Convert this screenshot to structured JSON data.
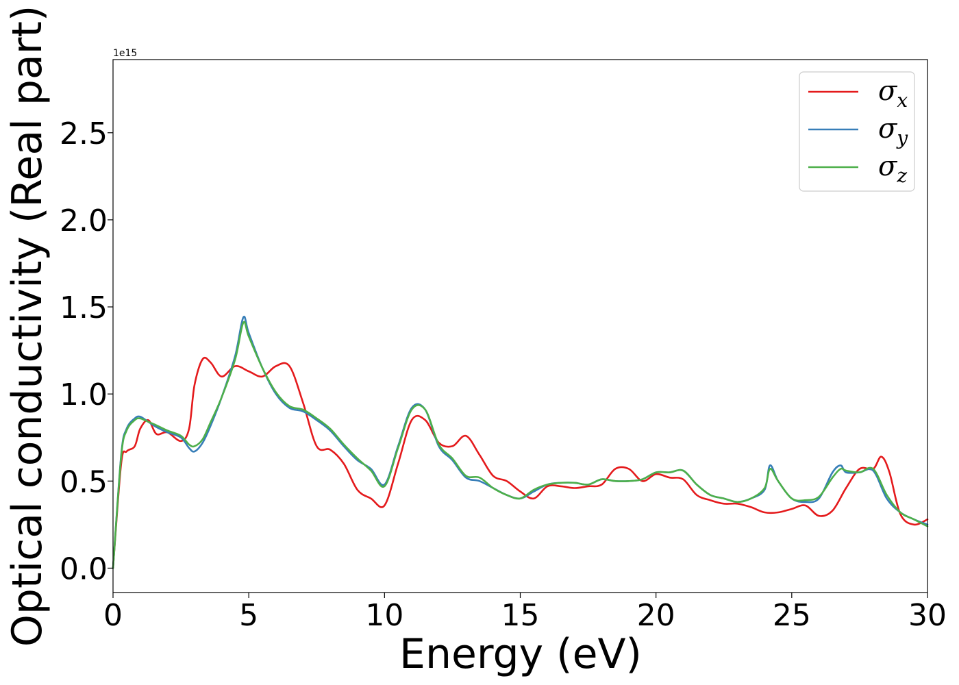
{
  "chart_data": {
    "type": "line",
    "title": "",
    "xlabel": "Energy (eV)",
    "ylabel": "Optical conductivity (Real part)",
    "y_offset_label": "1e15",
    "xlim": [
      0,
      30
    ],
    "ylim": [
      -0.14,
      2.92
    ],
    "x_ticks": [
      0,
      5,
      10,
      15,
      20,
      25,
      30
    ],
    "x_tick_labels": [
      "0",
      "5",
      "10",
      "15",
      "20",
      "25",
      "30"
    ],
    "y_ticks": [
      0.0,
      0.5,
      1.0,
      1.5,
      2.0,
      2.5
    ],
    "y_tick_labels": [
      "0.0",
      "0.5",
      "1.0",
      "1.5",
      "2.0",
      "2.5"
    ],
    "grid": false,
    "legend_position": "top-right",
    "series": [
      {
        "name": "σx",
        "symbol": "σ",
        "subscript": "x",
        "color": "#e41a1c",
        "x": [
          0,
          0.3,
          0.5,
          0.8,
          1.0,
          1.3,
          1.6,
          2.0,
          2.5,
          2.8,
          3.0,
          3.3,
          3.6,
          4.0,
          4.5,
          5.0,
          5.5,
          6.0,
          6.5,
          7.0,
          7.5,
          8.0,
          8.5,
          9.0,
          9.5,
          10.0,
          10.5,
          11.0,
          11.5,
          12.0,
          12.5,
          13.0,
          13.5,
          14.0,
          14.5,
          15.0,
          15.5,
          16.0,
          16.5,
          17.0,
          17.5,
          18.0,
          18.5,
          19.0,
          19.5,
          20.0,
          20.5,
          21.0,
          21.5,
          22.0,
          22.5,
          23.0,
          23.5,
          24.0,
          24.5,
          25.0,
          25.5,
          26.0,
          26.5,
          27.0,
          27.5,
          28.0,
          28.3,
          28.6,
          29.0,
          29.5,
          30.0
        ],
        "y": [
          0.0,
          0.6,
          0.67,
          0.7,
          0.8,
          0.85,
          0.77,
          0.78,
          0.73,
          0.8,
          1.05,
          1.2,
          1.18,
          1.1,
          1.16,
          1.13,
          1.1,
          1.16,
          1.16,
          0.95,
          0.7,
          0.68,
          0.6,
          0.45,
          0.4,
          0.36,
          0.6,
          0.85,
          0.85,
          0.72,
          0.7,
          0.76,
          0.65,
          0.53,
          0.5,
          0.44,
          0.4,
          0.47,
          0.47,
          0.46,
          0.47,
          0.48,
          0.57,
          0.57,
          0.5,
          0.54,
          0.52,
          0.51,
          0.42,
          0.39,
          0.37,
          0.37,
          0.35,
          0.32,
          0.32,
          0.34,
          0.36,
          0.3,
          0.33,
          0.46,
          0.57,
          0.57,
          0.64,
          0.55,
          0.31,
          0.25,
          0.28
        ]
      },
      {
        "name": "σy",
        "symbol": "σ",
        "subscript": "y",
        "color": "#377eb8",
        "x": [
          0,
          0.3,
          0.5,
          0.8,
          1.0,
          1.3,
          1.6,
          2.0,
          2.5,
          2.8,
          3.0,
          3.3,
          3.6,
          4.0,
          4.5,
          4.8,
          5.0,
          5.5,
          6.0,
          6.5,
          7.0,
          7.5,
          8.0,
          8.5,
          9.0,
          9.5,
          10.0,
          10.5,
          11.0,
          11.5,
          12.0,
          12.5,
          13.0,
          13.5,
          14.0,
          14.5,
          15.0,
          15.5,
          16.0,
          16.5,
          17.0,
          17.5,
          18.0,
          18.5,
          19.0,
          19.5,
          20.0,
          20.5,
          21.0,
          21.5,
          22.0,
          22.5,
          23.0,
          23.5,
          24.0,
          24.2,
          24.5,
          25.0,
          25.5,
          26.0,
          26.5,
          26.8,
          27.0,
          27.5,
          28.0,
          28.5,
          29.0,
          29.5,
          30.0
        ],
        "y": [
          0.0,
          0.65,
          0.8,
          0.86,
          0.87,
          0.84,
          0.81,
          0.78,
          0.75,
          0.69,
          0.67,
          0.72,
          0.82,
          0.98,
          1.22,
          1.44,
          1.35,
          1.15,
          1.0,
          0.92,
          0.9,
          0.85,
          0.79,
          0.7,
          0.62,
          0.57,
          0.48,
          0.7,
          0.92,
          0.91,
          0.7,
          0.62,
          0.52,
          0.5,
          0.46,
          0.42,
          0.4,
          0.44,
          0.48,
          0.49,
          0.49,
          0.48,
          0.51,
          0.5,
          0.5,
          0.51,
          0.55,
          0.55,
          0.56,
          0.48,
          0.42,
          0.4,
          0.38,
          0.4,
          0.45,
          0.59,
          0.5,
          0.4,
          0.38,
          0.4,
          0.55,
          0.59,
          0.55,
          0.55,
          0.56,
          0.4,
          0.32,
          0.28,
          0.25
        ]
      },
      {
        "name": "σz",
        "symbol": "σ",
        "subscript": "z",
        "color": "#4daf4a",
        "x": [
          0,
          0.3,
          0.5,
          0.8,
          1.0,
          1.3,
          1.6,
          2.0,
          2.5,
          2.8,
          3.0,
          3.3,
          3.6,
          4.0,
          4.5,
          4.8,
          5.0,
          5.5,
          6.0,
          6.5,
          7.0,
          7.5,
          8.0,
          8.5,
          9.0,
          9.5,
          10.0,
          10.5,
          11.0,
          11.5,
          12.0,
          12.5,
          13.0,
          13.5,
          14.0,
          14.5,
          15.0,
          15.5,
          16.0,
          16.5,
          17.0,
          17.5,
          18.0,
          18.5,
          19.0,
          19.5,
          20.0,
          20.5,
          21.0,
          21.5,
          22.0,
          22.5,
          23.0,
          23.5,
          24.0,
          24.2,
          24.5,
          25.0,
          25.5,
          26.0,
          26.5,
          26.8,
          27.0,
          27.5,
          28.0,
          28.5,
          29.0,
          29.5,
          30.0
        ],
        "y": [
          0.0,
          0.64,
          0.79,
          0.85,
          0.86,
          0.84,
          0.82,
          0.79,
          0.76,
          0.71,
          0.7,
          0.74,
          0.84,
          0.98,
          1.2,
          1.41,
          1.33,
          1.15,
          1.01,
          0.93,
          0.91,
          0.86,
          0.8,
          0.71,
          0.63,
          0.56,
          0.47,
          0.69,
          0.91,
          0.91,
          0.71,
          0.63,
          0.53,
          0.52,
          0.46,
          0.42,
          0.4,
          0.45,
          0.48,
          0.49,
          0.49,
          0.48,
          0.51,
          0.5,
          0.5,
          0.51,
          0.55,
          0.55,
          0.56,
          0.48,
          0.42,
          0.4,
          0.38,
          0.4,
          0.46,
          0.57,
          0.5,
          0.4,
          0.39,
          0.41,
          0.52,
          0.57,
          0.56,
          0.55,
          0.57,
          0.42,
          0.32,
          0.28,
          0.24
        ]
      }
    ]
  }
}
